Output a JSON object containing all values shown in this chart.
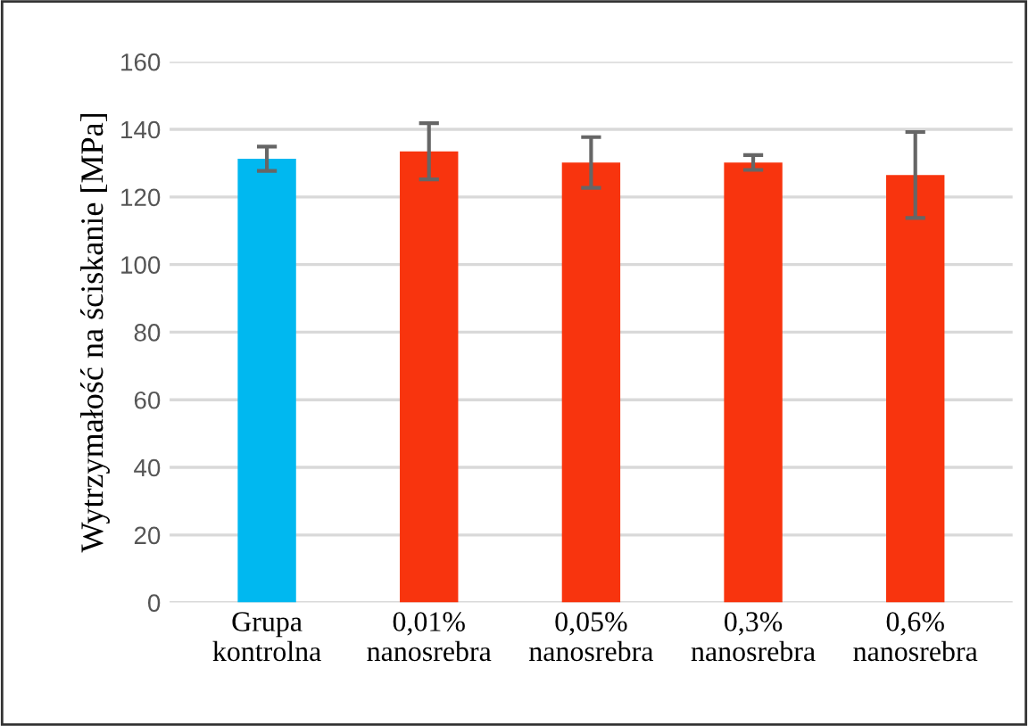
{
  "chart_data": {
    "type": "bar",
    "ylabel": "Wytrzymałość na ściskanie [MPa]",
    "categories": [
      "Grupa\nkontrolna",
      "0,01%\nnanosrebra",
      "0,05%\nnanosrebra",
      "0,3%\nnanosrebra",
      "0,6%\nnanosrebra"
    ],
    "values": [
      131.3,
      133.5,
      130.2,
      130.2,
      126.5
    ],
    "errors": [
      3.6,
      8.3,
      7.5,
      2.2,
      12.7
    ],
    "colors": [
      "#00b8f0",
      "#f8340e",
      "#f8340e",
      "#f8340e",
      "#f8340e"
    ],
    "ylim": [
      0,
      160
    ],
    "yticks": [
      0,
      20,
      40,
      60,
      80,
      100,
      120,
      140,
      160
    ],
    "grid": "y"
  }
}
